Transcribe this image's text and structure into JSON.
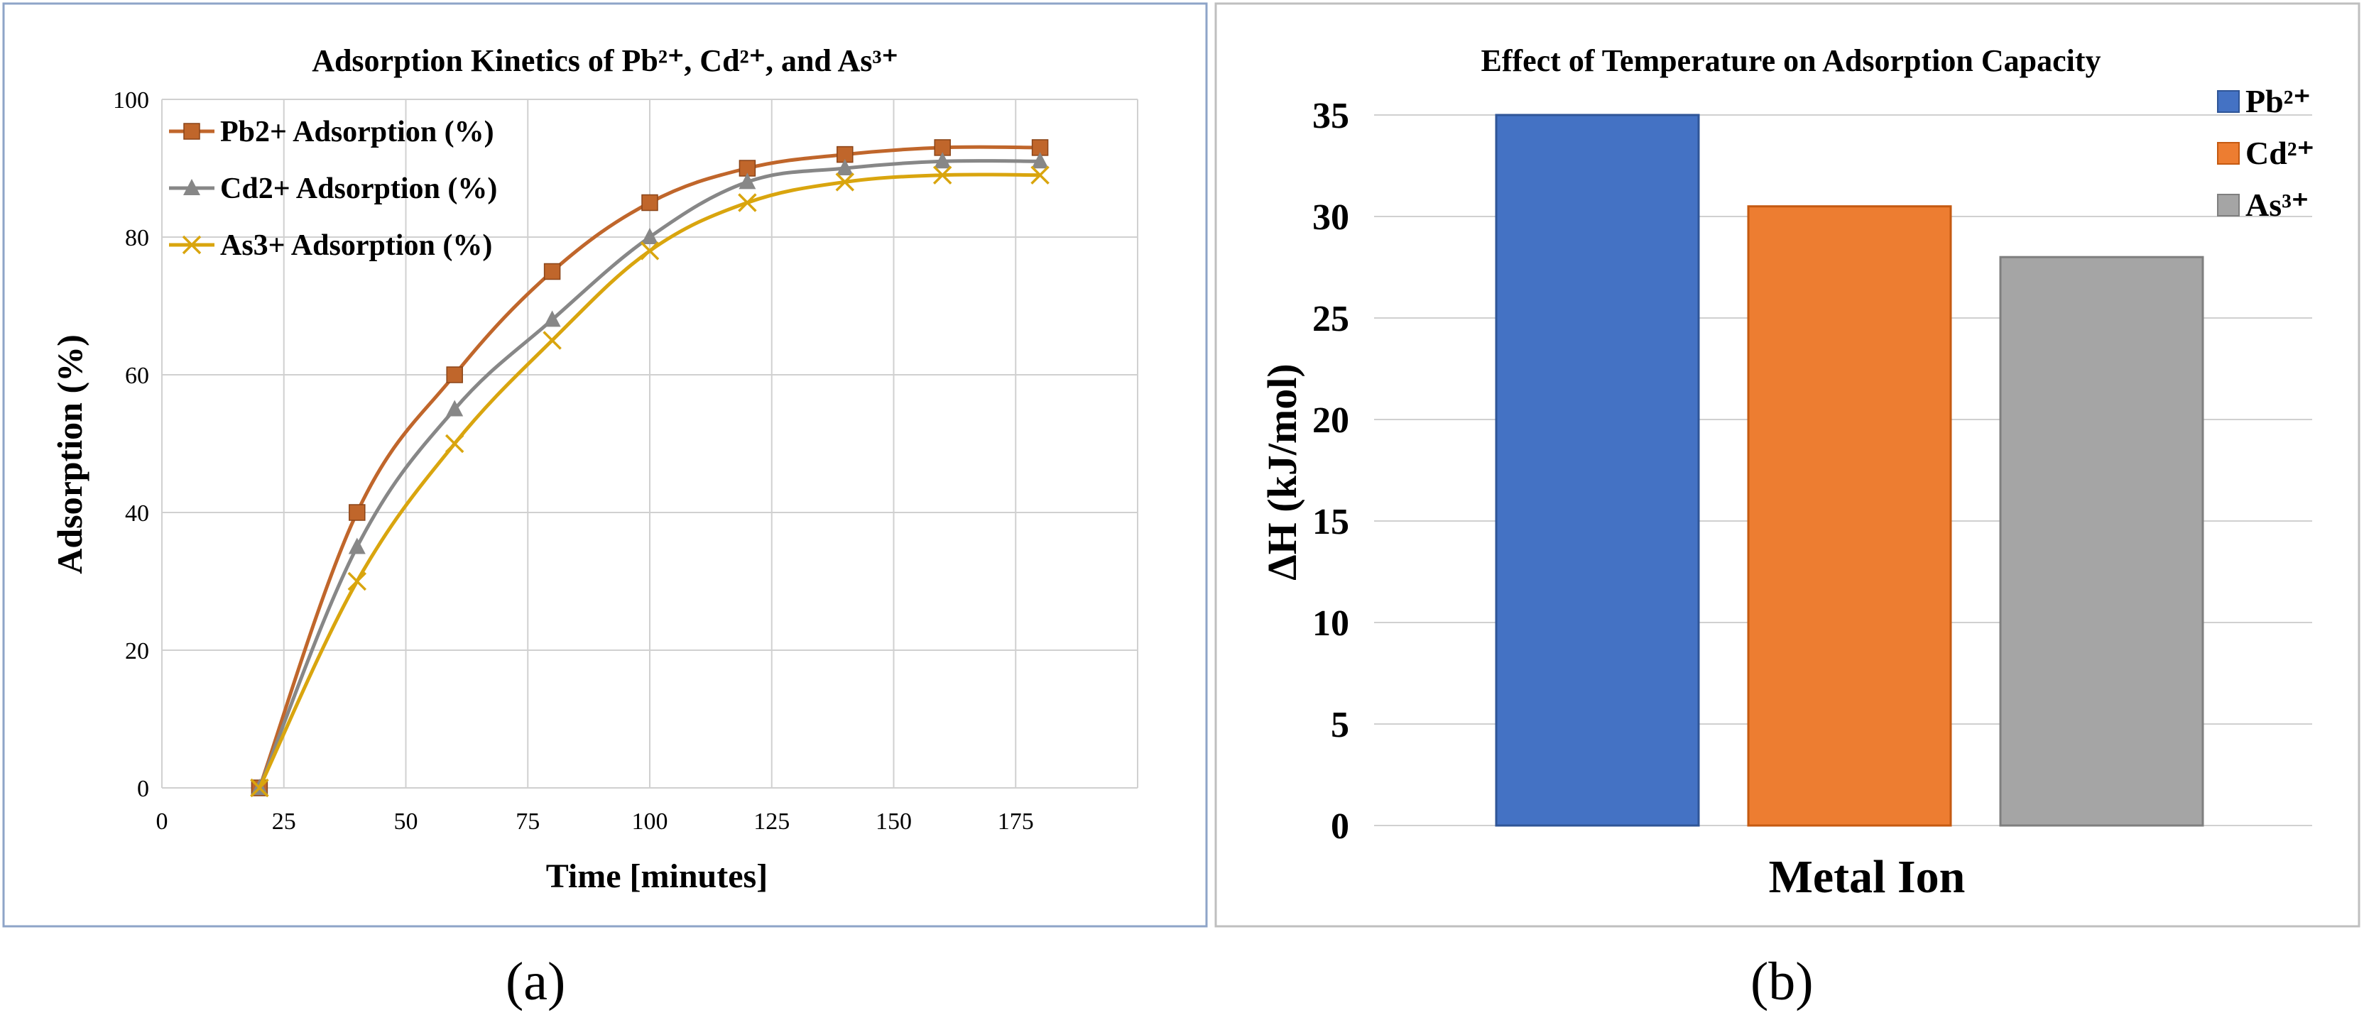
{
  "colors": {
    "pb": "#C0662B",
    "cd": "#878787",
    "as": "#D9A50E",
    "pb_bar": "#4472C4",
    "pb_bar_edge": "#2F5597",
    "cd_bar": "#ED7D31",
    "cd_bar_edge": "#C55A11",
    "as_bar": "#A5A5A5",
    "as_bar_edge": "#7F7F7F",
    "grid": "#D0D0D0",
    "frame_a": "#8EA4C8",
    "frame_b": "#BFBFBF"
  },
  "panel_labels": {
    "a": "(a)",
    "b": "(b)"
  },
  "chart_data": [
    {
      "type": "line",
      "title": "Adsorption Kinetics of Pb²⁺, Cd²⁺, and As³⁺",
      "xlabel": "Time [minutes]",
      "ylabel": "Adsorption (%)",
      "xlim": [
        0,
        200
      ],
      "ylim": [
        0,
        100
      ],
      "xticks": [
        0,
        25,
        50,
        75,
        100,
        125,
        150,
        175
      ],
      "yticks": [
        0,
        20,
        40,
        60,
        80,
        100
      ],
      "grid": true,
      "legend": "top-left",
      "x": [
        20,
        40,
        60,
        80,
        100,
        120,
        140,
        160,
        180
      ],
      "series": [
        {
          "name": "Pb2+ Adsorption (%)",
          "marker": "square",
          "color_key": "pb",
          "values": [
            0,
            40,
            60,
            75,
            85,
            90,
            92,
            93,
            93
          ]
        },
        {
          "name": "Cd2+ Adsorption (%)",
          "marker": "triangle",
          "color_key": "cd",
          "values": [
            0,
            35,
            55,
            68,
            80,
            88,
            90,
            91,
            91
          ]
        },
        {
          "name": "As3+ Adsorption (%)",
          "marker": "x",
          "color_key": "as",
          "values": [
            0,
            30,
            50,
            65,
            78,
            85,
            88,
            89,
            89
          ]
        }
      ]
    },
    {
      "type": "bar",
      "title": "Effect of Temperature on Adsorption Capacity",
      "xlabel": "Metal Ion",
      "ylabel": "ΔH (kJ/mol)",
      "ylim": [
        0,
        35
      ],
      "yticks": [
        0,
        5,
        10,
        15,
        20,
        25,
        30,
        35
      ],
      "grid": true,
      "legend": "top-right",
      "series": [
        {
          "name": "Pb²⁺",
          "color_key": "pb_bar",
          "edge_key": "pb_bar_edge",
          "value": 35
        },
        {
          "name": "Cd²⁺",
          "color_key": "cd_bar",
          "edge_key": "cd_bar_edge",
          "value": 30.5
        },
        {
          "name": "As³⁺",
          "color_key": "as_bar",
          "edge_key": "as_bar_edge",
          "value": 28
        }
      ]
    }
  ]
}
